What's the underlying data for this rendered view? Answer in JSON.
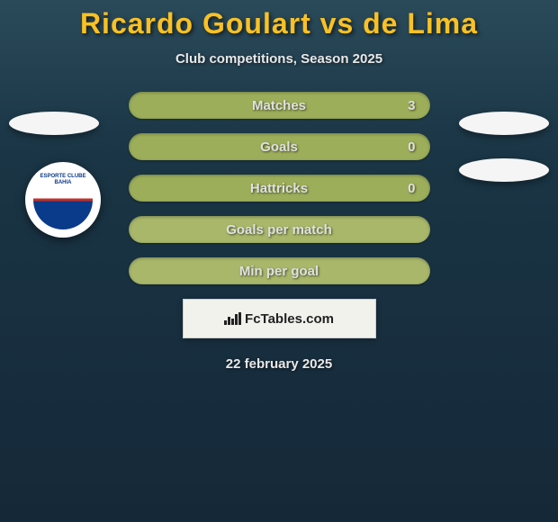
{
  "title": {
    "text": "Ricardo Goulart vs de Lima",
    "color": "#f9c122"
  },
  "subtitle": "Club competitions, Season 2025",
  "club_badge": {
    "line1": "ESPORTE CLUBE",
    "line2": "BAHIA"
  },
  "stats": {
    "row_bg_value": "#9cae5a",
    "row_bg_empty": "#a8b76a",
    "rows": [
      {
        "label": "Matches",
        "p1": "",
        "p2": "3",
        "has_values": true
      },
      {
        "label": "Goals",
        "p1": "",
        "p2": "0",
        "has_values": true
      },
      {
        "label": "Hattricks",
        "p1": "",
        "p2": "0",
        "has_values": true
      },
      {
        "label": "Goals per match",
        "p1": "",
        "p2": "",
        "has_values": false
      },
      {
        "label": "Min per goal",
        "p1": "",
        "p2": "",
        "has_values": false
      }
    ]
  },
  "watermark": "FcTables.com",
  "date": "22 february 2025"
}
